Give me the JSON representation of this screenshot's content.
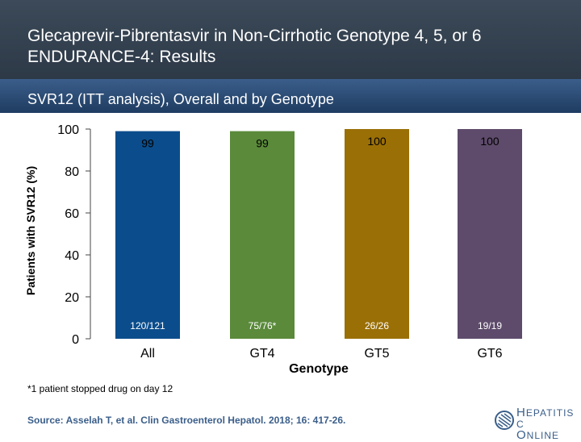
{
  "header": {
    "title_line1": "Glecaprevir-Pibrentasvir in Non-Cirrhotic Genotype 4, 5, or 6",
    "title_line2": "ENDURANCE-4: Results",
    "subtitle": "SVR12 (ITT analysis), Overall and by Genotype"
  },
  "chart_data": {
    "type": "bar",
    "categories": [
      "All",
      "GT4",
      "GT5",
      "GT6"
    ],
    "values": [
      99,
      99,
      100,
      100
    ],
    "value_labels": [
      "99",
      "99",
      "100",
      "100"
    ],
    "count_labels": [
      "120/121",
      "75/76*",
      "26/26",
      "19/19"
    ],
    "colors": [
      "#0b4d8c",
      "#5a8a3a",
      "#9a6f06",
      "#5e4b6b"
    ],
    "xlabel": "Genotype",
    "ylabel": "Patients with SVR12 (%)",
    "ylim": [
      0,
      100
    ],
    "yticks": [
      0,
      20,
      40,
      60,
      80,
      100
    ],
    "ytick_labels": [
      "0",
      "20",
      "40",
      "60",
      "80",
      "100"
    ],
    "grid": false
  },
  "footnote": "*1 patient stopped drug on day 12",
  "source": "Source: Asselah T, et al.  Clin Gastroenterol Hepatol. 2018; 16: 417-26.",
  "logo": {
    "line1_cap": "H",
    "line1_rest": "EPATITIS C",
    "line2_cap": "O",
    "line2_rest": "NLINE",
    "icon": "hepatitis-c-online-logo-icon"
  }
}
